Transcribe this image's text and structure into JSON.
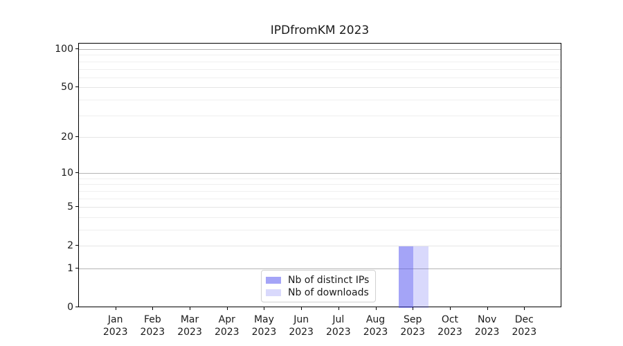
{
  "chart_data": {
    "type": "bar",
    "title": "IPDfromKM 2023",
    "xlabel": "",
    "ylabel": "",
    "categories": [
      "Jan",
      "Feb",
      "Mar",
      "Apr",
      "May",
      "Jun",
      "Jul",
      "Aug",
      "Sep",
      "Oct",
      "Nov",
      "Dec"
    ],
    "category_year": "2023",
    "series": [
      {
        "name": "Nb of distinct IPs",
        "color": "rgba(80,80,240,0.52)",
        "values": [
          0,
          0,
          0,
          0,
          0,
          0,
          0,
          0,
          2,
          0,
          0,
          0
        ]
      },
      {
        "name": "Nb of downloads",
        "color": "rgba(80,80,240,0.22)",
        "values": [
          0,
          0,
          0,
          0,
          0,
          0,
          0,
          0,
          2,
          0,
          0,
          0
        ]
      }
    ],
    "y_axis": {
      "scale": "log1p",
      "major_ticks": [
        0,
        1,
        2,
        5,
        10,
        20,
        50,
        100
      ],
      "minor_gridlines": [
        3,
        4,
        6,
        7,
        8,
        9,
        30,
        40,
        60,
        70,
        80,
        90
      ],
      "ylim": [
        0,
        112
      ]
    },
    "legend": {
      "position": "lower center"
    },
    "grid": "horizontal-both"
  }
}
